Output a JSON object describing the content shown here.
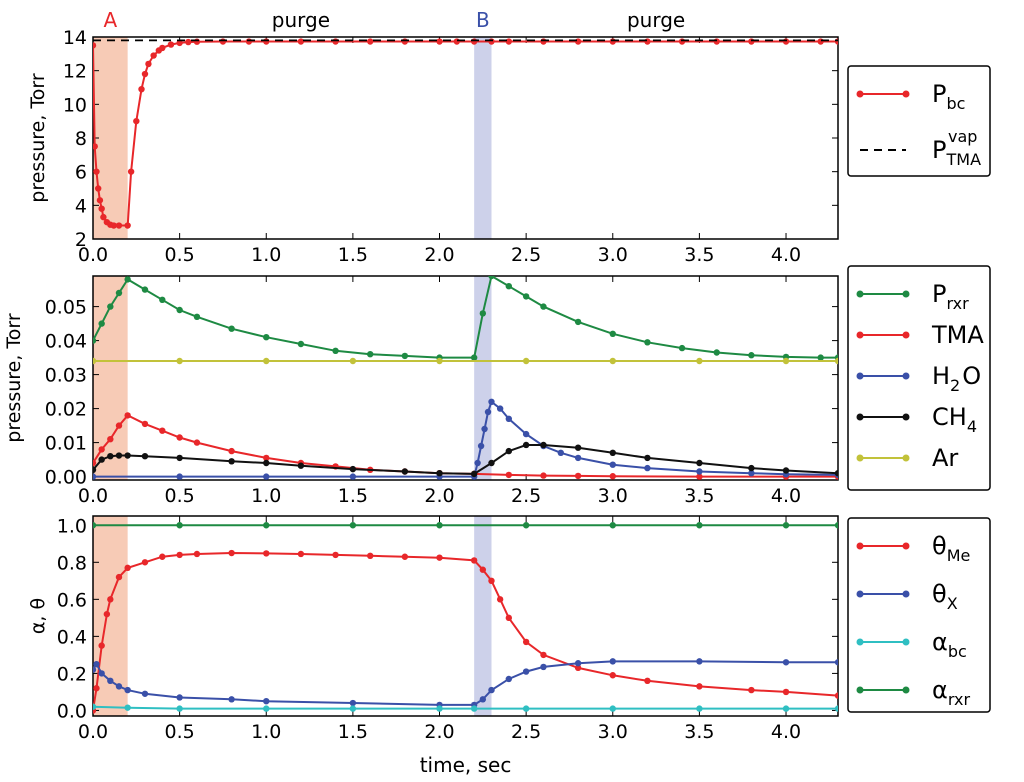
{
  "chart_data": {
    "type": "line",
    "phase_labels": [
      {
        "text": "A",
        "color": "#e8272a",
        "x": 0.1
      },
      {
        "text": "purge",
        "color": "#000000",
        "x": 1.2
      },
      {
        "text": "B",
        "color": "#3a50a8",
        "x": 2.25
      },
      {
        "text": "purge",
        "color": "#000000",
        "x": 3.25
      }
    ],
    "shaded_regions": [
      {
        "x0": 0.0,
        "x1": 0.2,
        "color": "#f7cbb6"
      },
      {
        "x0": 2.2,
        "x1": 2.3,
        "color": "#cdd1ea"
      }
    ],
    "xlabel": "time, sec",
    "xlim": [
      0,
      4.3
    ],
    "xticks": [
      0.0,
      0.5,
      1.0,
      1.5,
      2.0,
      2.5,
      3.0,
      3.5,
      4.0
    ],
    "xtick_labels": [
      "0.0",
      "0.5",
      "1.0",
      "1.5",
      "2.0",
      "2.5",
      "3.0",
      "3.5",
      "4.0"
    ],
    "panels": [
      {
        "ylabel": "pressure, Torr",
        "ylim": [
          2,
          14
        ],
        "yticks": [
          2,
          4,
          6,
          8,
          10,
          12,
          14
        ],
        "ytick_labels": [
          "2",
          "4",
          "6",
          "8",
          "10",
          "12",
          "14"
        ],
        "series": [
          {
            "name": "P_bc",
            "legend_main": "P",
            "legend_sub": "bc",
            "legend_sup": "",
            "color": "#e8272a",
            "style": "solid-marker",
            "x": [
              0.0,
              0.01,
              0.02,
              0.03,
              0.04,
              0.05,
              0.06,
              0.08,
              0.1,
              0.12,
              0.15,
              0.2,
              0.22,
              0.25,
              0.28,
              0.3,
              0.32,
              0.35,
              0.38,
              0.4,
              0.45,
              0.5,
              0.55,
              0.6,
              0.75,
              0.9,
              1.0,
              1.2,
              1.4,
              1.6,
              1.8,
              2.0,
              2.1,
              2.2,
              2.3,
              2.4,
              2.6,
              2.8,
              3.0,
              3.2,
              3.4,
              3.6,
              3.8,
              4.0,
              4.2,
              4.3
            ],
            "y": [
              13.5,
              7.5,
              6.0,
              5.0,
              4.3,
              3.8,
              3.3,
              3.0,
              2.85,
              2.8,
              2.8,
              2.8,
              6.0,
              9.0,
              10.9,
              11.8,
              12.4,
              12.9,
              13.2,
              13.35,
              13.55,
              13.65,
              13.7,
              13.72,
              13.73,
              13.73,
              13.73,
              13.73,
              13.73,
              13.73,
              13.73,
              13.73,
              13.73,
              13.73,
              13.73,
              13.73,
              13.73,
              13.73,
              13.73,
              13.73,
              13.73,
              13.73,
              13.73,
              13.73,
              13.73,
              13.73
            ]
          },
          {
            "name": "P_TMA^vap",
            "legend_main": "P",
            "legend_sub": "TMA",
            "legend_sup": "vap",
            "color": "#000000",
            "style": "dashed",
            "x": [
              0.0,
              4.3
            ],
            "y": [
              13.8,
              13.8
            ]
          }
        ]
      },
      {
        "ylabel": "pressure, Torr",
        "ylim": [
          -0.001,
          0.059
        ],
        "yticks": [
          0.0,
          0.01,
          0.02,
          0.03,
          0.04,
          0.05
        ],
        "ytick_labels": [
          "0.00",
          "0.01",
          "0.02",
          "0.03",
          "0.04",
          "0.05"
        ],
        "series": [
          {
            "name": "P_rxr",
            "legend_main": "P",
            "legend_sub": "rxr",
            "legend_sup": "",
            "color": "#1e8a43",
            "style": "solid-marker",
            "x": [
              0.0,
              0.05,
              0.1,
              0.15,
              0.2,
              0.3,
              0.4,
              0.5,
              0.6,
              0.8,
              1.0,
              1.2,
              1.4,
              1.6,
              1.8,
              2.0,
              2.2,
              2.25,
              2.3,
              2.4,
              2.5,
              2.6,
              2.8,
              3.0,
              3.2,
              3.4,
              3.6,
              3.8,
              4.0,
              4.2,
              4.3
            ],
            "y": [
              0.04,
              0.045,
              0.05,
              0.054,
              0.058,
              0.055,
              0.052,
              0.049,
              0.047,
              0.0435,
              0.041,
              0.039,
              0.037,
              0.036,
              0.0355,
              0.035,
              0.035,
              0.048,
              0.059,
              0.056,
              0.053,
              0.05,
              0.0455,
              0.042,
              0.0395,
              0.0378,
              0.0365,
              0.0357,
              0.0352,
              0.035,
              0.035
            ]
          },
          {
            "name": "TMA",
            "legend_main": "TMA",
            "legend_sub": "",
            "legend_sup": "",
            "color": "#e8272a",
            "style": "solid-marker",
            "x": [
              0.0,
              0.05,
              0.1,
              0.15,
              0.2,
              0.3,
              0.4,
              0.5,
              0.6,
              0.8,
              1.0,
              1.2,
              1.4,
              1.6,
              1.8,
              2.0,
              2.2,
              2.4,
              2.6,
              2.8,
              3.0,
              3.5,
              4.0,
              4.3
            ],
            "y": [
              0.004,
              0.008,
              0.011,
              0.015,
              0.018,
              0.0155,
              0.0135,
              0.0115,
              0.01,
              0.0075,
              0.0055,
              0.004,
              0.003,
              0.002,
              0.0015,
              0.001,
              0.0008,
              0.0005,
              0.0003,
              0.0002,
              0.0001,
              0.0,
              0.0,
              0.0
            ]
          },
          {
            "name": "H2O",
            "legend_main": "H",
            "legend_sub": "2",
            "legend_tail": "O",
            "legend_sup": "",
            "color": "#3a50a8",
            "style": "solid-marker",
            "x": [
              0.0,
              0.5,
              1.0,
              1.5,
              2.0,
              2.2,
              2.22,
              2.24,
              2.26,
              2.28,
              2.3,
              2.35,
              2.4,
              2.5,
              2.6,
              2.7,
              2.8,
              3.0,
              3.2,
              3.5,
              3.8,
              4.0,
              4.3
            ],
            "y": [
              0.0,
              0.0,
              0.0,
              0.0,
              0.0,
              0.0,
              0.004,
              0.009,
              0.014,
              0.019,
              0.022,
              0.02,
              0.017,
              0.0125,
              0.009,
              0.007,
              0.0055,
              0.0035,
              0.0025,
              0.0015,
              0.001,
              0.0007,
              0.0005
            ]
          },
          {
            "name": "CH4",
            "legend_main": "CH",
            "legend_sub": "4",
            "legend_sup": "",
            "color": "#111111",
            "style": "solid-marker",
            "x": [
              0.0,
              0.05,
              0.1,
              0.15,
              0.2,
              0.3,
              0.5,
              0.8,
              1.0,
              1.2,
              1.5,
              1.8,
              2.0,
              2.2,
              2.3,
              2.4,
              2.5,
              2.6,
              2.8,
              3.0,
              3.2,
              3.5,
              3.8,
              4.0,
              4.3
            ],
            "y": [
              0.002,
              0.005,
              0.006,
              0.0062,
              0.0062,
              0.006,
              0.0055,
              0.0045,
              0.004,
              0.0032,
              0.0022,
              0.0015,
              0.001,
              0.0008,
              0.004,
              0.0075,
              0.0093,
              0.0093,
              0.0085,
              0.007,
              0.0055,
              0.004,
              0.0025,
              0.0018,
              0.001
            ]
          },
          {
            "name": "Ar",
            "legend_main": "Ar",
            "legend_sub": "",
            "legend_sup": "",
            "color": "#c2c23a",
            "style": "solid-marker",
            "x": [
              0.0,
              0.5,
              1.0,
              1.5,
              2.0,
              2.5,
              3.0,
              3.5,
              4.0,
              4.3
            ],
            "y": [
              0.034,
              0.034,
              0.034,
              0.034,
              0.034,
              0.034,
              0.034,
              0.034,
              0.034,
              0.034
            ]
          }
        ]
      },
      {
        "ylabel": "α, θ",
        "ylim": [
          -0.03,
          1.05
        ],
        "yticks": [
          0.0,
          0.2,
          0.4,
          0.6,
          0.8,
          1.0
        ],
        "ytick_labels": [
          "0.0",
          "0.2",
          "0.4",
          "0.6",
          "0.8",
          "1.0"
        ],
        "series": [
          {
            "name": "θ_Me",
            "legend_main": "θ",
            "legend_sub": "Me",
            "legend_sup": "",
            "color": "#e8272a",
            "style": "solid-marker",
            "x": [
              0.0,
              0.02,
              0.05,
              0.08,
              0.1,
              0.15,
              0.2,
              0.3,
              0.4,
              0.5,
              0.6,
              0.8,
              1.0,
              1.2,
              1.4,
              1.6,
              1.8,
              2.0,
              2.2,
              2.25,
              2.3,
              2.35,
              2.4,
              2.5,
              2.6,
              2.8,
              3.0,
              3.2,
              3.5,
              3.8,
              4.0,
              4.3
            ],
            "y": [
              0.0,
              0.12,
              0.35,
              0.52,
              0.6,
              0.72,
              0.77,
              0.8,
              0.83,
              0.84,
              0.845,
              0.85,
              0.848,
              0.845,
              0.84,
              0.835,
              0.83,
              0.825,
              0.81,
              0.76,
              0.7,
              0.6,
              0.5,
              0.37,
              0.3,
              0.23,
              0.19,
              0.16,
              0.13,
              0.11,
              0.1,
              0.08
            ]
          },
          {
            "name": "θ_X",
            "legend_main": "θ",
            "legend_sub": "X",
            "legend_sup": "",
            "color": "#3a50a8",
            "style": "solid-marker",
            "x": [
              0.0,
              0.02,
              0.05,
              0.1,
              0.15,
              0.2,
              0.3,
              0.5,
              0.8,
              1.0,
              1.5,
              2.0,
              2.2,
              2.25,
              2.3,
              2.4,
              2.5,
              2.6,
              2.8,
              3.0,
              3.5,
              4.0,
              4.3
            ],
            "y": [
              0.22,
              0.25,
              0.2,
              0.16,
              0.13,
              0.11,
              0.09,
              0.07,
              0.06,
              0.05,
              0.04,
              0.03,
              0.03,
              0.06,
              0.11,
              0.17,
              0.21,
              0.235,
              0.255,
              0.265,
              0.265,
              0.26,
              0.26
            ]
          },
          {
            "name": "α_bc",
            "legend_main": "α",
            "legend_sub": "bc",
            "legend_sup": "",
            "color": "#2fbfc2",
            "style": "solid-marker",
            "x": [
              0.0,
              0.2,
              0.5,
              1.0,
              1.5,
              2.0,
              2.2,
              2.5,
              3.0,
              3.5,
              4.0,
              4.3
            ],
            "y": [
              0.02,
              0.015,
              0.01,
              0.01,
              0.01,
              0.01,
              0.01,
              0.01,
              0.01,
              0.01,
              0.01,
              0.01
            ]
          },
          {
            "name": "α_rxr",
            "legend_main": "α",
            "legend_sub": "rxr",
            "legend_sup": "",
            "color": "#1e8a43",
            "style": "solid-marker",
            "x": [
              0.0,
              0.5,
              1.0,
              1.5,
              2.0,
              2.5,
              3.0,
              3.5,
              4.0,
              4.3
            ],
            "y": [
              1.0,
              1.0,
              1.0,
              1.0,
              1.0,
              1.0,
              1.0,
              1.0,
              1.0,
              1.0
            ]
          }
        ]
      }
    ]
  }
}
